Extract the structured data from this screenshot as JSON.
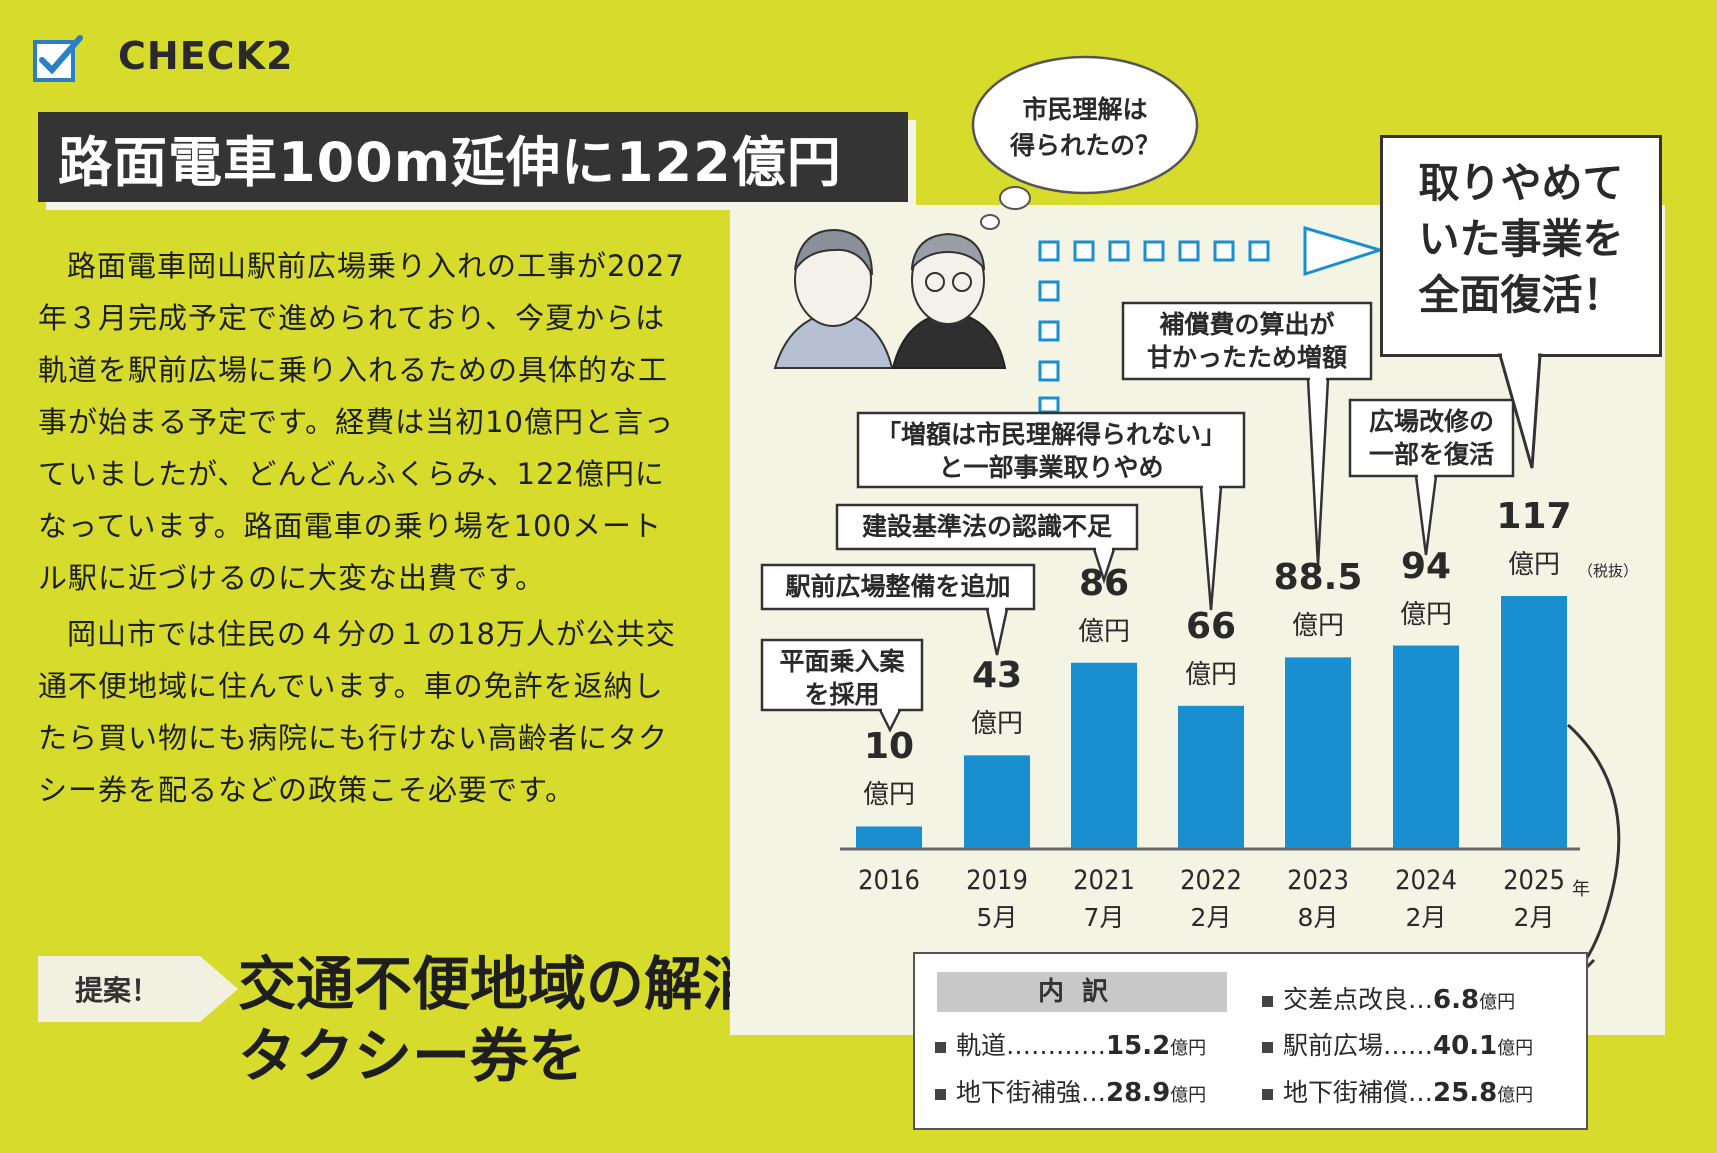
{
  "header": {
    "check_label": "CHECK2",
    "title": "路面電車100m延伸に122億円"
  },
  "body": {
    "paragraph1": "路面電車岡山駅前広場乗り入れの工事が2027年３月完成予定で進められており、今夏からは軌道を駅前広場に乗り入れるための具体的な工事が始まる予定です。経費は当初10億円と言っていましたが、どんどんふくらみ、122億円になっています。路面電車の乗り場を100メートル駅に近づけるのに大変な出費です。",
    "paragraph2": "岡山市では住民の４分の１の18万人が公共交通不便地域に住んでいます。車の免許を返納したら買い物にも病院にも行けない高齢者にタクシー券を配るなどの政策こそ必要です。"
  },
  "proposal": {
    "tag": "提案！",
    "line1": "交通不便地域の解消と",
    "line2": "タクシー券を"
  },
  "thought_bubble": {
    "line1": "市民理解は",
    "line2": "得られたの？"
  },
  "big_callout": {
    "line1": "取りやめて",
    "line2": "いた事業を",
    "line3": "全面復活！"
  },
  "chart_data": {
    "type": "bar",
    "categories": [
      "2016",
      "2019 5月",
      "2021 7月",
      "2022 2月",
      "2023 8月",
      "2024 2月",
      "2025年 2月"
    ],
    "values": [
      10,
      43,
      86,
      66,
      88.5,
      94,
      117
    ],
    "unit": "億円",
    "ylim": [
      0,
      117
    ],
    "bar_color": "#1a8fd0",
    "ticks": [
      {
        "year": "2016",
        "month": ""
      },
      {
        "year": "2019",
        "month": "5月"
      },
      {
        "year": "2021",
        "month": "7月"
      },
      {
        "year": "2022",
        "month": "2月"
      },
      {
        "year": "2023",
        "month": "8月"
      },
      {
        "year": "2024",
        "month": "2月"
      },
      {
        "year": "2025",
        "month": "2月"
      }
    ],
    "year_suffix": "年",
    "value_labels": [
      "10",
      "43",
      "86",
      "66",
      "88.5",
      "94",
      "117"
    ],
    "tax_note": "（税抜）",
    "annotations": [
      {
        "line1": "平面乗入案",
        "line2": "を採用"
      },
      {
        "line1": "駅前広場整備を追加",
        "line2": ""
      },
      {
        "line1": "建設基準法の認識不足",
        "line2": ""
      },
      {
        "line1": "「増額は市民理解得られない」",
        "line2": "と一部事業取りやめ"
      },
      {
        "line1": "補償費の算出が",
        "line2": "甘かったため増額"
      },
      {
        "line1": "広場改修の",
        "line2": "一部を復活"
      }
    ]
  },
  "breakdown": {
    "header": "内訳",
    "items": [
      {
        "name": "軌道…………",
        "value": "15.2",
        "unit": "億円"
      },
      {
        "name": "地下街補強…",
        "value": "28.9",
        "unit": "億円"
      },
      {
        "name": "交差点改良…",
        "value": "6.8",
        "unit": "億円"
      },
      {
        "name": "駅前広場……",
        "value": "40.1",
        "unit": "億円"
      },
      {
        "name": "地下街補償…",
        "value": "25.8",
        "unit": "億円"
      }
    ]
  }
}
